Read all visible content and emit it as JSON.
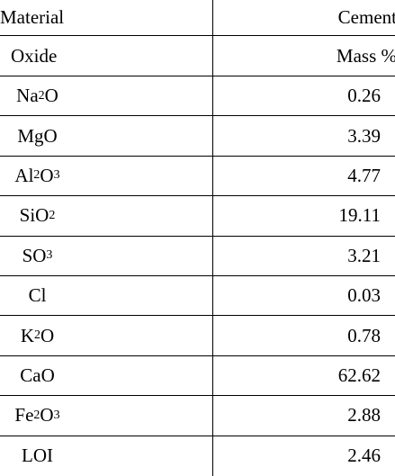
{
  "header": {
    "material_label": "Material",
    "material_value": "Cement",
    "oxide_label": "Oxide",
    "unit_label": "Mass %"
  },
  "rows": [
    {
      "oxide": "Na",
      "oxide_sub1": "2",
      "oxide_rest": "O",
      "oxide_sub2": "",
      "value": "0.26"
    },
    {
      "oxide": "MgO",
      "oxide_sub1": "",
      "oxide_rest": "",
      "oxide_sub2": "",
      "value": "3.39"
    },
    {
      "oxide": "Al",
      "oxide_sub1": "2",
      "oxide_rest": "O",
      "oxide_sub2": "3",
      "value": "4.77"
    },
    {
      "oxide": "SiO",
      "oxide_sub1": "2",
      "oxide_rest": "",
      "oxide_sub2": "",
      "value": "19.11"
    },
    {
      "oxide": "SO",
      "oxide_sub1": "3",
      "oxide_rest": "",
      "oxide_sub2": "",
      "value": "3.21"
    },
    {
      "oxide": "Cl",
      "oxide_sub1": "",
      "oxide_rest": "",
      "oxide_sub2": "",
      "value": "0.03"
    },
    {
      "oxide": "K",
      "oxide_sub1": "2",
      "oxide_rest": "O",
      "oxide_sub2": "",
      "value": "0.78"
    },
    {
      "oxide": "CaO",
      "oxide_sub1": "",
      "oxide_rest": "",
      "oxide_sub2": "",
      "value": "62.62"
    },
    {
      "oxide": "Fe",
      "oxide_sub1": "2",
      "oxide_rest": "O",
      "oxide_sub2": "3",
      "value": "2.88"
    },
    {
      "oxide": "LOI",
      "oxide_sub1": "",
      "oxide_rest": "",
      "oxide_sub2": "",
      "value": "2.46"
    }
  ]
}
